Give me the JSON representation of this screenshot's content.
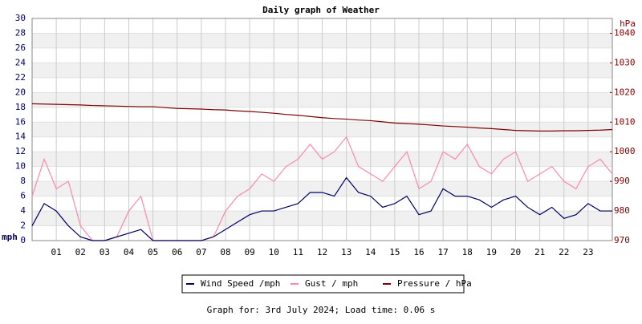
{
  "chart_data": {
    "type": "line",
    "title": "Daily graph of Weather",
    "ylabel": "mph",
    "y2label": "hPa",
    "footer": "Graph for: 3rd July 2024; Load time: 0.06 s",
    "x": [
      0,
      0.5,
      1,
      1.5,
      2,
      2.5,
      3,
      3.5,
      4,
      4.5,
      5,
      5.5,
      6,
      6.5,
      7,
      7.5,
      8,
      8.5,
      9,
      9.5,
      10,
      10.5,
      11,
      11.5,
      12,
      12.5,
      13,
      13.5,
      14,
      14.5,
      15,
      15.5,
      16,
      16.5,
      17,
      17.5,
      18,
      18.5,
      19,
      19.5,
      20,
      20.5,
      21,
      21.5,
      22,
      22.5,
      23,
      23.5,
      24
    ],
    "xlim": [
      0,
      24
    ],
    "xticks": [
      {
        "value": 1,
        "label": "01"
      },
      {
        "value": 2,
        "label": "02"
      },
      {
        "value": 3,
        "label": "03"
      },
      {
        "value": 4,
        "label": "04"
      },
      {
        "value": 5,
        "label": "05"
      },
      {
        "value": 6,
        "label": "06"
      },
      {
        "value": 7,
        "label": "07"
      },
      {
        "value": 8,
        "label": "08"
      },
      {
        "value": 9,
        "label": "09"
      },
      {
        "value": 10,
        "label": "10"
      },
      {
        "value": 11,
        "label": "11"
      },
      {
        "value": 12,
        "label": "12"
      },
      {
        "value": 13,
        "label": "13"
      },
      {
        "value": 14,
        "label": "14"
      },
      {
        "value": 15,
        "label": "15"
      },
      {
        "value": 16,
        "label": "16"
      },
      {
        "value": 17,
        "label": "17"
      },
      {
        "value": 18,
        "label": "18"
      },
      {
        "value": 19,
        "label": "19"
      },
      {
        "value": 20,
        "label": "20"
      },
      {
        "value": 21,
        "label": "21"
      },
      {
        "value": 22,
        "label": "22"
      },
      {
        "value": 23,
        "label": "23"
      }
    ],
    "ylim": [
      0,
      30
    ],
    "yticks": [
      0,
      2,
      4,
      6,
      8,
      10,
      12,
      14,
      16,
      18,
      20,
      22,
      24,
      26,
      28,
      30
    ],
    "y2lim": [
      970,
      1045
    ],
    "y2ticks": [
      970,
      980,
      990,
      1000,
      1010,
      1020,
      1030,
      1040
    ],
    "grid": true,
    "series": [
      {
        "name": "Gust / mph",
        "color": "#ff88aa",
        "values": [
          6,
          11,
          7,
          8,
          2,
          0,
          0,
          0.5,
          4,
          6,
          0,
          0,
          0,
          0,
          0,
          0.5,
          4,
          6,
          7,
          9,
          8,
          10,
          11,
          13,
          11,
          12,
          14,
          10,
          9,
          8,
          10,
          12,
          7,
          8,
          12,
          11,
          13,
          10,
          9,
          11,
          12,
          8,
          9,
          10,
          8,
          7,
          10,
          11,
          9
        ]
      },
      {
        "name": "Wind Speed /mph",
        "color": "#000066",
        "values": [
          2,
          5,
          4,
          2,
          0.5,
          0,
          0,
          0.5,
          1,
          1.5,
          0,
          0,
          0,
          0,
          0,
          0.5,
          1.5,
          2.5,
          3.5,
          4,
          4,
          4.5,
          5,
          6.5,
          6.5,
          6,
          8.5,
          6.5,
          6,
          4.5,
          5,
          6,
          3.5,
          4,
          7,
          6,
          6,
          5.5,
          4.5,
          5.5,
          6,
          4.5,
          3.5,
          4.5,
          3,
          3.5,
          5,
          4,
          4
        ]
      },
      {
        "name": "Pressure / hPa",
        "color": "#800000",
        "axis": "y2",
        "values": [
          1016.2,
          1016.1,
          1016,
          1015.9,
          1015.8,
          1015.6,
          1015.5,
          1015.4,
          1015.3,
          1015.2,
          1015.2,
          1014.9,
          1014.6,
          1014.5,
          1014.4,
          1014.2,
          1014.1,
          1013.8,
          1013.6,
          1013.3,
          1013,
          1012.6,
          1012.3,
          1011.9,
          1011.5,
          1011.2,
          1011,
          1010.7,
          1010.5,
          1010.1,
          1009.7,
          1009.5,
          1009.3,
          1009,
          1008.7,
          1008.5,
          1008.3,
          1008,
          1007.8,
          1007.5,
          1007.2,
          1007.1,
          1007,
          1007,
          1007.1,
          1007.1,
          1007.2,
          1007.3,
          1007.5
        ]
      }
    ],
    "legend_order": [
      1,
      0,
      2
    ]
  }
}
